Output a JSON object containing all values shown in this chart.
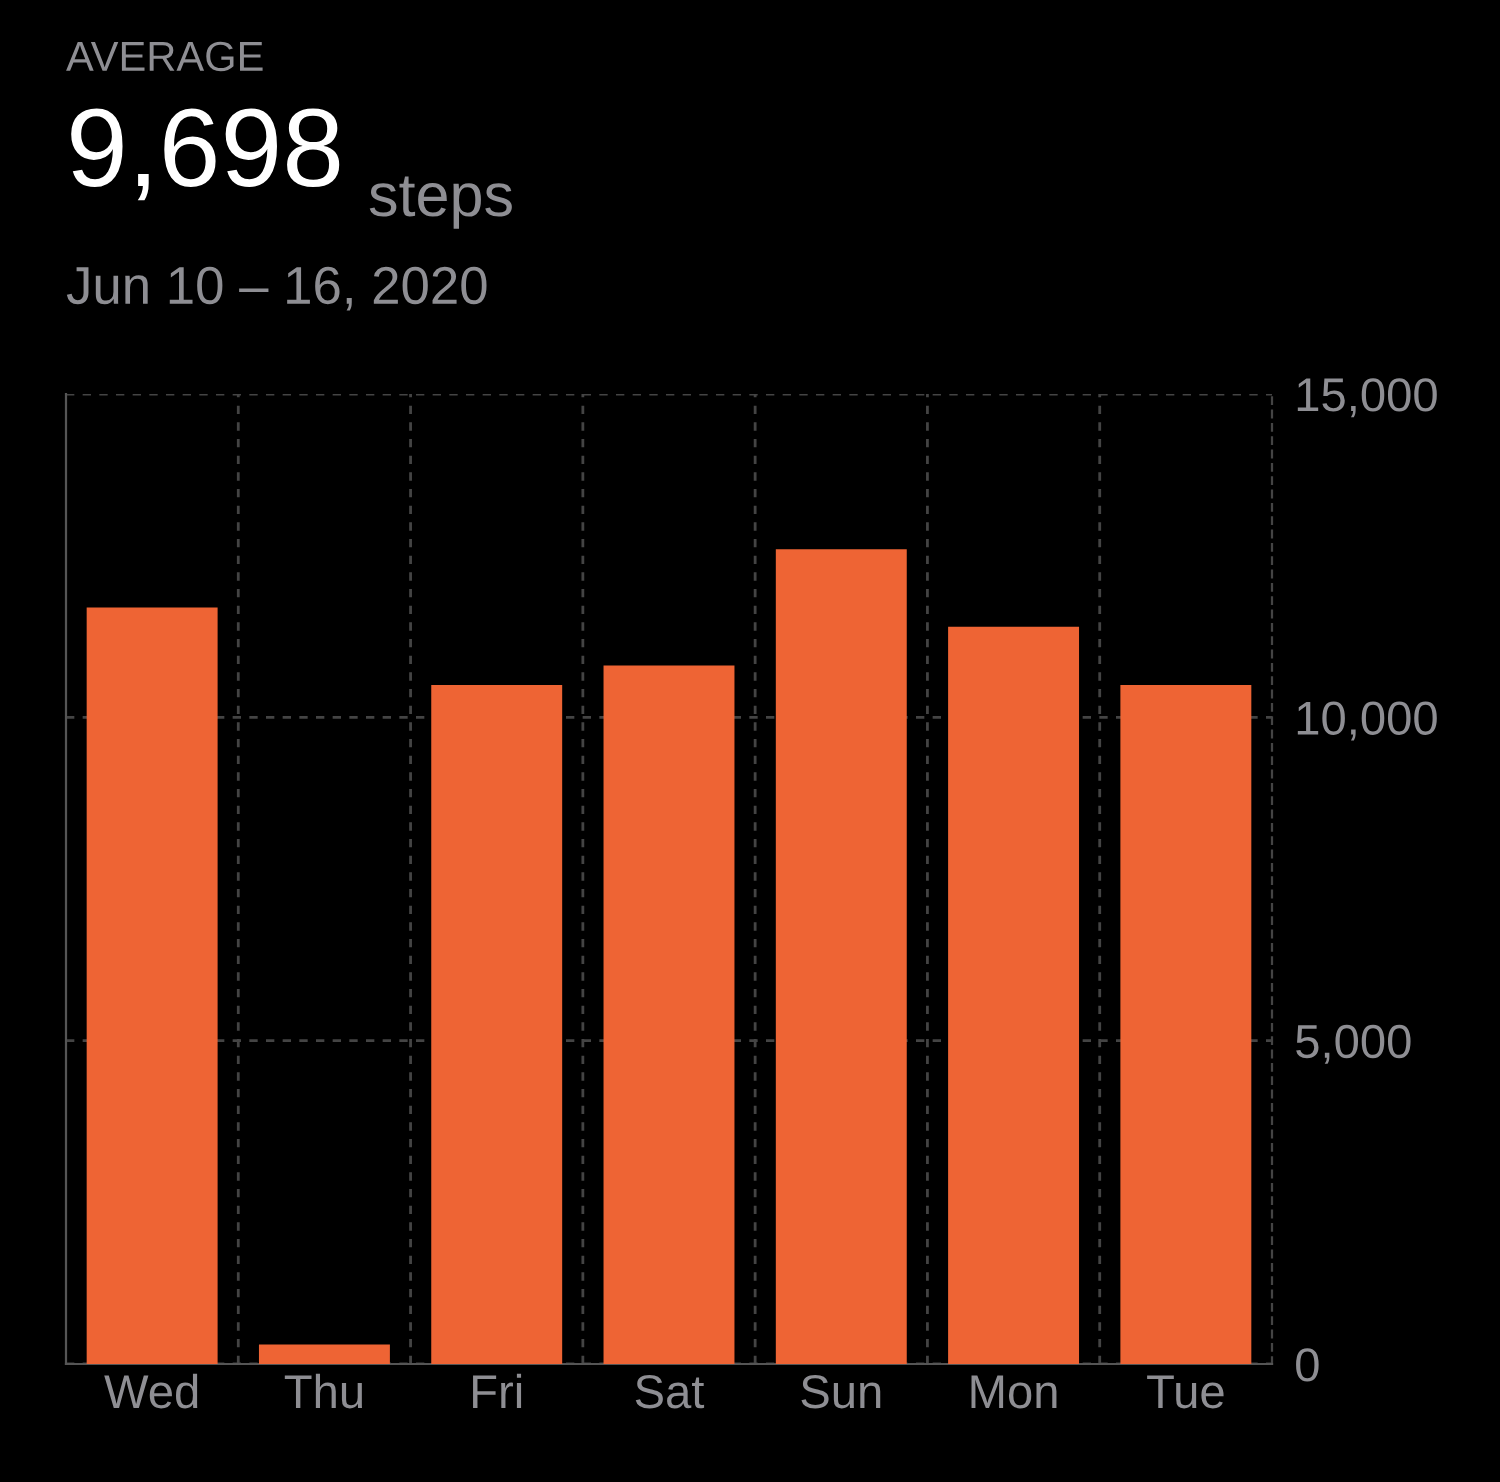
{
  "chart_data": {
    "type": "bar",
    "title": "AVERAGE",
    "subtitle": "Jun 10 – 16, 2020",
    "annotations": [
      "9,698",
      "steps"
    ],
    "categories": [
      "Wed",
      "Thu",
      "Fri",
      "Sat",
      "Sun",
      "Mon",
      "Tue"
    ],
    "values": [
      11700,
      300,
      10500,
      10800,
      12600,
      11400,
      10500
    ],
    "color": "#ee6434",
    "ylim": [
      0,
      15000
    ],
    "yticks": [
      {
        "value": 0,
        "label": "0"
      },
      {
        "value": 5000,
        "label": "5,000"
      },
      {
        "value": 10000,
        "label": "10,000"
      },
      {
        "value": 15000,
        "label": "15,000"
      }
    ],
    "grid": true
  }
}
